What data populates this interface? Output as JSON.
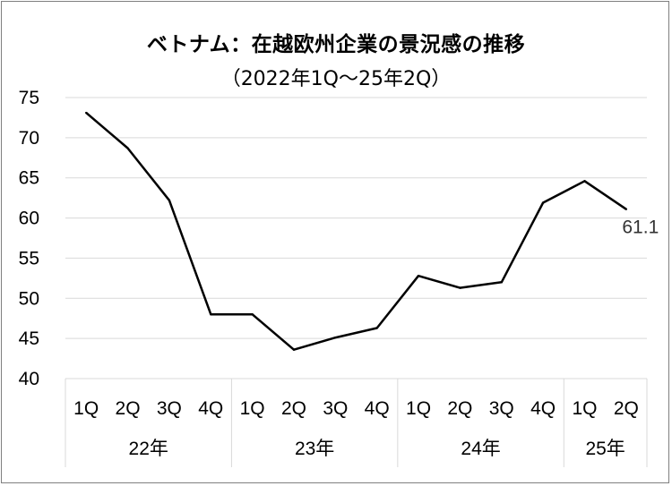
{
  "chart_data": {
    "type": "line",
    "title": "ベトナム：在越欧州企業の景況感の推移",
    "subtitle": "（2022年1Q～25年2Q）",
    "xlabel": "",
    "ylabel": "",
    "ylim": [
      40,
      75
    ],
    "yticks": [
      "75",
      "70",
      "65",
      "60",
      "55",
      "50",
      "45",
      "40"
    ],
    "grid": "horizontal",
    "legend": "none",
    "categories": [
      "1Q",
      "2Q",
      "3Q",
      "4Q",
      "1Q",
      "2Q",
      "3Q",
      "4Q",
      "1Q",
      "2Q",
      "3Q",
      "4Q",
      "1Q",
      "2Q"
    ],
    "year_groups": [
      {
        "label": "22年",
        "count": 4
      },
      {
        "label": "23年",
        "count": 4
      },
      {
        "label": "24年",
        "count": 4
      },
      {
        "label": "25年",
        "count": 2
      }
    ],
    "series": [
      {
        "values": [
          73.1,
          68.7,
          62.2,
          48.0,
          48.0,
          43.6,
          45.1,
          46.3,
          52.8,
          51.3,
          52.0,
          61.9,
          64.6,
          61.1
        ],
        "color": "#000000"
      }
    ],
    "data_labels": [
      {
        "index": 13,
        "text": "61.1"
      }
    ]
  }
}
